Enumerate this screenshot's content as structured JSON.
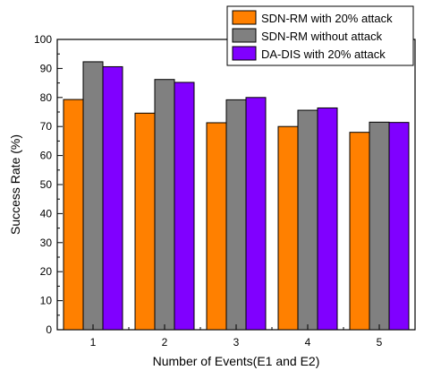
{
  "chart_data": {
    "type": "bar",
    "categories": [
      "1",
      "2",
      "3",
      "4",
      "5"
    ],
    "series": [
      {
        "name": "SDN-RM with 20% attack",
        "color": "#FF8000",
        "values": [
          79.3,
          74.6,
          71.3,
          70.0,
          68.0
        ]
      },
      {
        "name": "SDN-RM without attack",
        "color": "#808080",
        "values": [
          92.3,
          86.2,
          79.2,
          75.6,
          71.5
        ]
      },
      {
        "name": "DA-DIS with 20% attack",
        "color": "#8000FF",
        "values": [
          90.6,
          85.2,
          80.0,
          76.4,
          71.4
        ]
      }
    ],
    "title": "",
    "xlabel": "Number of Events(E1 and E2)",
    "ylabel": "Success Rate (%)",
    "ylim": [
      0,
      100
    ],
    "yticks": [
      0,
      10,
      20,
      30,
      40,
      50,
      60,
      70,
      80,
      90,
      100
    ],
    "grid": false,
    "legend_position": "top-right"
  }
}
